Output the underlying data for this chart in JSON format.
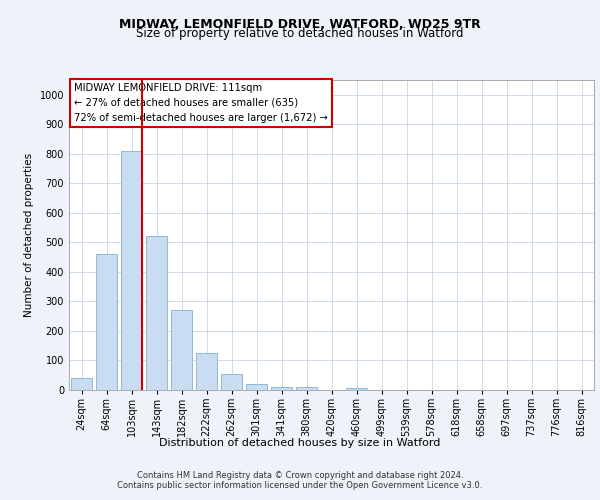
{
  "title1": "MIDWAY, LEMONFIELD DRIVE, WATFORD, WD25 9TR",
  "title2": "Size of property relative to detached houses in Watford",
  "xlabel": "Distribution of detached houses by size in Watford",
  "ylabel": "Number of detached properties",
  "footer1": "Contains HM Land Registry data © Crown copyright and database right 2024.",
  "footer2": "Contains public sector information licensed under the Open Government Licence v3.0.",
  "annotation_line1": "MIDWAY LEMONFIELD DRIVE: 111sqm",
  "annotation_line2": "← 27% of detached houses are smaller (635)",
  "annotation_line3": "72% of semi-detached houses are larger (1,672) →",
  "bar_labels": [
    "24sqm",
    "64sqm",
    "103sqm",
    "143sqm",
    "182sqm",
    "222sqm",
    "262sqm",
    "301sqm",
    "341sqm",
    "380sqm",
    "420sqm",
    "460sqm",
    "499sqm",
    "539sqm",
    "578sqm",
    "618sqm",
    "658sqm",
    "697sqm",
    "737sqm",
    "776sqm",
    "816sqm"
  ],
  "bar_values": [
    40,
    460,
    810,
    520,
    270,
    125,
    55,
    20,
    10,
    10,
    0,
    8,
    0,
    0,
    0,
    0,
    0,
    0,
    0,
    0,
    0
  ],
  "bar_color": "#c9ddf2",
  "bar_edgecolor": "#90b8d8",
  "bar_linewidth": 0.7,
  "ylim": [
    0,
    1050
  ],
  "yticks": [
    0,
    100,
    200,
    300,
    400,
    500,
    600,
    700,
    800,
    900,
    1000
  ],
  "background_color": "#eef2f9",
  "plot_bg_color": "#ffffff",
  "grid_color": "#c8d4e8",
  "annot_box_facecolor": "#ffffff",
  "annot_box_edgecolor": "#cc0000",
  "red_line_color": "#cc0000",
  "title1_fontsize": 9,
  "title2_fontsize": 8.5,
  "ylabel_fontsize": 7.5,
  "xlabel_fontsize": 8,
  "tick_fontsize": 7,
  "footer_fontsize": 6.0,
  "annot_fontsize": 7.2
}
